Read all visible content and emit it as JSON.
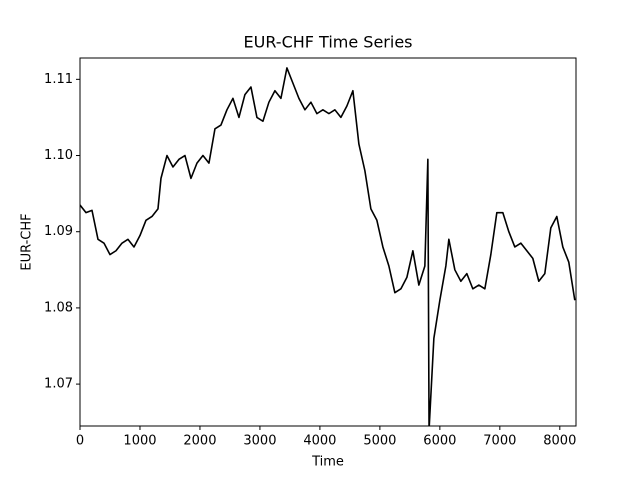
{
  "chart_data": {
    "type": "line",
    "title": "EUR-CHF Time Series",
    "x_label": "Time",
    "y_label": "EUR-CHF",
    "series": [
      {
        "name": "EUR-CHF",
        "color": "#000000",
        "x": [
          0,
          100,
          200,
          300,
          400,
          500,
          600,
          700,
          800,
          900,
          1000,
          1100,
          1200,
          1300,
          1350,
          1450,
          1550,
          1650,
          1750,
          1850,
          1950,
          2050,
          2150,
          2250,
          2350,
          2450,
          2550,
          2650,
          2750,
          2850,
          2950,
          3050,
          3150,
          3250,
          3350,
          3450,
          3550,
          3650,
          3750,
          3850,
          3950,
          4050,
          4150,
          4250,
          4350,
          4450,
          4550,
          4650,
          4750,
          4850,
          4950,
          5050,
          5150,
          5250,
          5350,
          5450,
          5550,
          5650,
          5750,
          5800,
          5820,
          5900,
          6000,
          6100,
          6150,
          6250,
          6350,
          6450,
          6550,
          6650,
          6750,
          6850,
          6950,
          7050,
          7150,
          7250,
          7350,
          7450,
          7550,
          7650,
          7750,
          7850,
          7950,
          8050,
          8150,
          8250
        ],
        "values": [
          1.0935,
          1.0925,
          1.0928,
          1.089,
          1.0885,
          1.087,
          1.0875,
          1.0885,
          1.089,
          1.088,
          1.0895,
          1.0915,
          1.092,
          1.093,
          1.097,
          1.1,
          1.0985,
          1.0995,
          1.1,
          1.097,
          1.099,
          1.1,
          1.099,
          1.1035,
          1.104,
          1.106,
          1.1075,
          1.105,
          1.108,
          1.109,
          1.105,
          1.1045,
          1.107,
          1.1085,
          1.1075,
          1.1115,
          1.1095,
          1.1075,
          1.106,
          1.107,
          1.1055,
          1.106,
          1.1055,
          1.106,
          1.105,
          1.1065,
          1.1085,
          1.1015,
          1.098,
          1.093,
          1.0915,
          1.088,
          1.0855,
          1.082,
          1.0825,
          1.084,
          1.0875,
          1.083,
          1.0855,
          1.0995,
          1.064,
          1.076,
          1.081,
          1.0855,
          1.089,
          1.085,
          1.0835,
          1.0845,
          1.0825,
          1.083,
          1.0825,
          1.087,
          1.0925,
          1.0925,
          1.09,
          1.088,
          1.0885,
          1.0875,
          1.0865,
          1.0835,
          1.0845,
          1.0905,
          1.092,
          1.088,
          1.086,
          1.081
        ]
      }
    ],
    "xlim": [
      0,
      8270
    ],
    "xticks": [
      0,
      1000,
      2000,
      3000,
      4000,
      5000,
      6000,
      7000,
      8000
    ],
    "ylim": [
      1.0645,
      1.1128
    ],
    "yticks": [
      1.07,
      1.08,
      1.09,
      {
        "value": 1.1,
        "label": "1.10"
      },
      1.11
    ]
  }
}
